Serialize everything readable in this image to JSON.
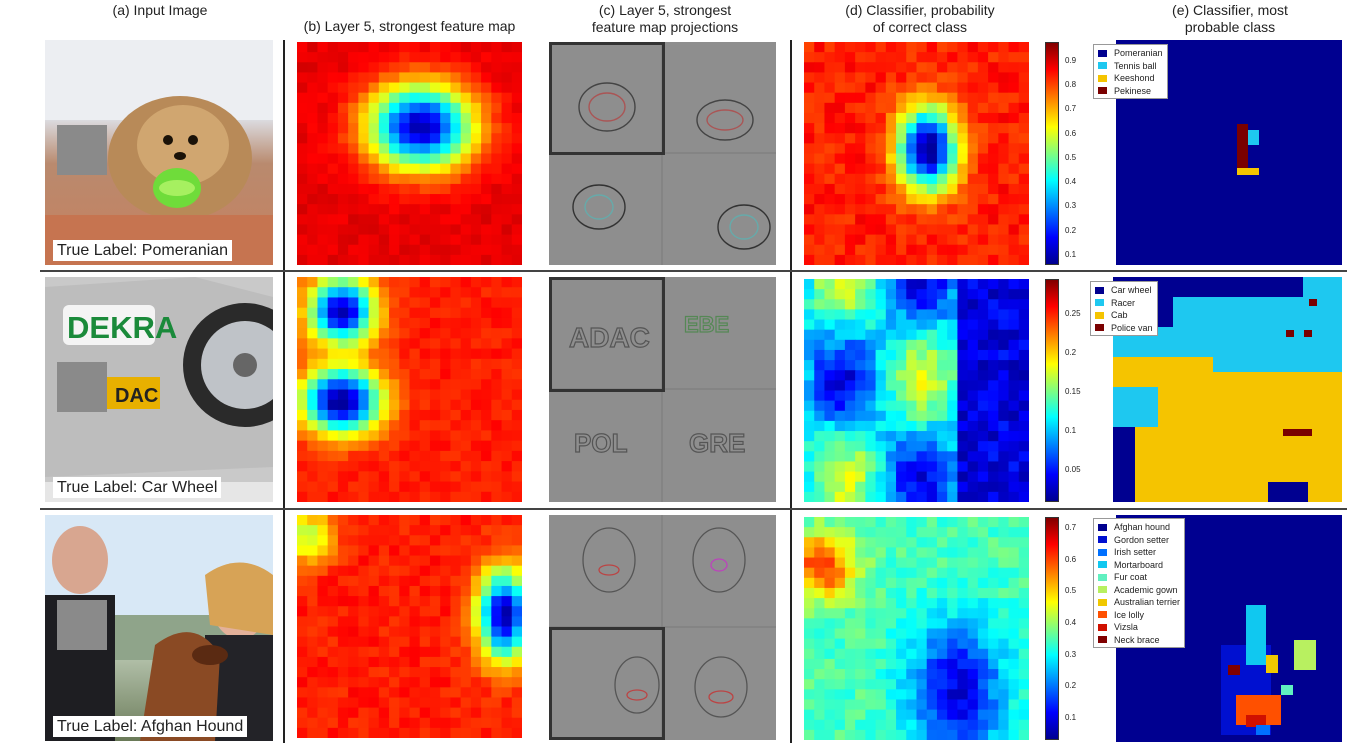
{
  "headers": {
    "a": "(a) Input Image",
    "b": "(b) Layer 5, strongest feature map",
    "c_line1": "(c) Layer 5, strongest",
    "c_line2": "feature map projections",
    "d_line1": "(d) Classifier, probability",
    "d_line2": "of correct class",
    "e_line1": "(e) Classifier, most",
    "e_line2": "probable class"
  },
  "rows": [
    {
      "true_label": "True Label: Pomeranian",
      "colorbar_ticks": [
        "0.9",
        "0.8",
        "0.7",
        "0.6",
        "0.5",
        "0.4",
        "0.3",
        "0.2",
        "0.1"
      ],
      "legend": [
        {
          "label": "Pomeranian",
          "color": "#00008f"
        },
        {
          "label": "Tennis ball",
          "color": "#1ec8f0"
        },
        {
          "label": "Keeshond",
          "color": "#f5c400"
        },
        {
          "label": "Pekinese",
          "color": "#7a0000"
        }
      ],
      "background_color": "#000090"
    },
    {
      "true_label": "True Label: Car Wheel",
      "colorbar_ticks": [
        "0.25",
        "0.2",
        "0.15",
        "0.1",
        "0.05"
      ],
      "legend": [
        {
          "label": "Car wheel",
          "color": "#00008f"
        },
        {
          "label": "Racer",
          "color": "#1ec8f0"
        },
        {
          "label": "Cab",
          "color": "#f5c400"
        },
        {
          "label": "Police van",
          "color": "#7a0000"
        }
      ],
      "background_color": "#000090"
    },
    {
      "true_label": "True Label: Afghan Hound",
      "colorbar_ticks": [
        "0.7",
        "0.6",
        "0.5",
        "0.4",
        "0.3",
        "0.2",
        "0.1"
      ],
      "legend": [
        {
          "label": "Afghan hound",
          "color": "#00008f"
        },
        {
          "label": "Gordon setter",
          "color": "#0010d0"
        },
        {
          "label": "Irish setter",
          "color": "#0070ff"
        },
        {
          "label": "Mortarboard",
          "color": "#10c8f0"
        },
        {
          "label": "Fur coat",
          "color": "#60f0c0"
        },
        {
          "label": "Academic gown",
          "color": "#b8f060"
        },
        {
          "label": "Australian terrier",
          "color": "#f0c800"
        },
        {
          "label": "Ice lolly",
          "color": "#ff5000"
        },
        {
          "label": "Vizsla",
          "color": "#d01000"
        },
        {
          "label": "Neck brace",
          "color": "#800000"
        }
      ],
      "background_color": "#000090"
    }
  ]
}
